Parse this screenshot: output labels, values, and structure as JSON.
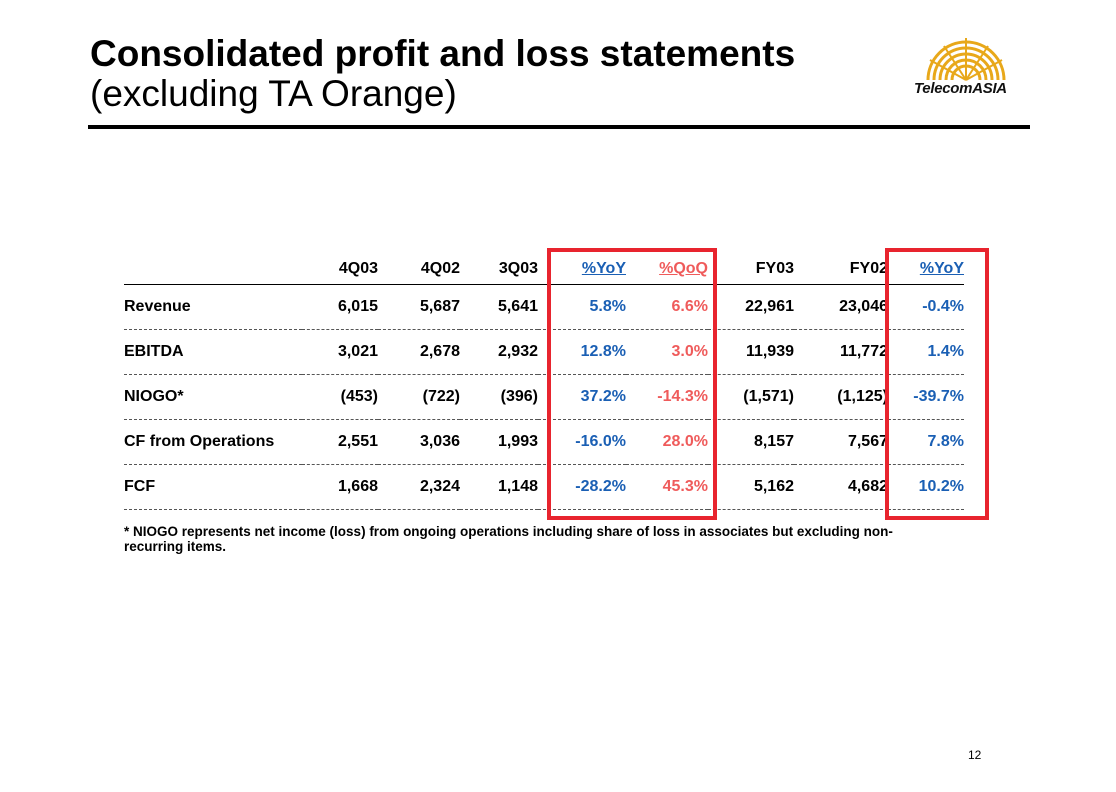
{
  "title": {
    "line1": "Consolidated profit and loss statements",
    "line2": "(excluding TA Orange)"
  },
  "logo": {
    "text": "TelecomASIA",
    "icon": "sunburst-logo-icon",
    "color": "#e8a81a"
  },
  "table": {
    "headers": [
      "",
      "4Q03",
      "4Q02",
      "3Q03",
      "%YoY",
      "%QoQ",
      "FY03",
      "FY02",
      "%YoY"
    ],
    "rows": [
      {
        "label": "Revenue",
        "cells": [
          "6,015",
          "5,687",
          "5,641",
          "5.8%",
          "6.6%",
          "22,961",
          "23,046",
          "-0.4%"
        ]
      },
      {
        "label": "EBITDA",
        "cells": [
          "3,021",
          "2,678",
          "2,932",
          "12.8%",
          "3.0%",
          "11,939",
          "11,772",
          "1.4%"
        ]
      },
      {
        "label": "NIOGO*",
        "cells": [
          "(453)",
          "(722)",
          "(396)",
          "37.2%",
          "-14.3%",
          "(1,571)",
          "(1,125)",
          "-39.7%"
        ]
      },
      {
        "label": "CF from Operations",
        "cells": [
          "2,551",
          "3,036",
          "1,993",
          "-16.0%",
          "28.0%",
          "8,157",
          "7,567",
          "7.8%"
        ]
      },
      {
        "label": "FCF",
        "cells": [
          "1,668",
          "2,324",
          "1,148",
          "-28.2%",
          "45.3%",
          "5,162",
          "4,682",
          "10.2%"
        ]
      }
    ]
  },
  "footnote": "* NIOGO represents net income (loss) from ongoing operations including share of loss in associates but excluding non-recurring items.",
  "page_number": "12",
  "colors": {
    "highlight_box": "#e8242e",
    "yoy_blue": "#1a5fb4",
    "qoq_red": "#ef5b5b"
  }
}
